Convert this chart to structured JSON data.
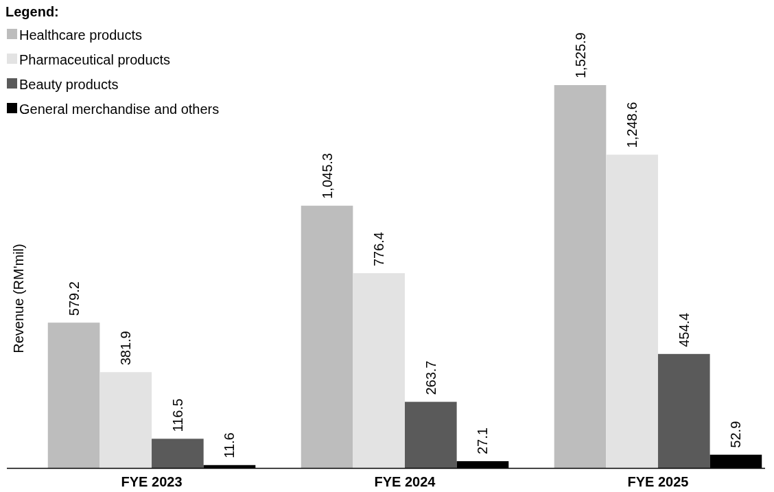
{
  "chart_data": {
    "type": "bar",
    "categories": [
      "FYE 2023",
      "FYE 2024",
      "FYE 2025"
    ],
    "ylabel": "Revenue (RM'mil)",
    "legend_title": "Legend:",
    "legend": "top left",
    "series": [
      {
        "name": "Healthcare products",
        "color": "#bdbdbd",
        "values": [
          579.2,
          1045.3,
          1525.9
        ],
        "value_labels": [
          "579.2",
          "1,045.3",
          "1,525.9"
        ]
      },
      {
        "name": "Pharmaceutical products",
        "color": "#e3e3e3",
        "values": [
          381.9,
          776.4,
          1248.6
        ],
        "value_labels": [
          "381.9",
          "776.4",
          "1,248.6"
        ]
      },
      {
        "name": "Beauty products",
        "color": "#5a5a5a",
        "values": [
          116.5,
          263.7,
          454.4
        ],
        "value_labels": [
          "116.5",
          "263.7",
          "454.4"
        ]
      },
      {
        "name": "General merchandise and others",
        "color": "#000000",
        "values": [
          11.6,
          27.1,
          52.9
        ],
        "value_labels": [
          "11.6",
          "27.1",
          "52.9"
        ]
      }
    ]
  }
}
